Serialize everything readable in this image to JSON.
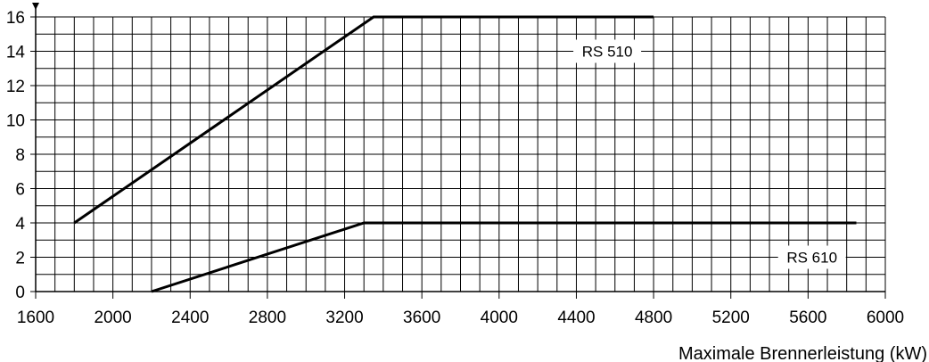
{
  "chart_data": {
    "type": "line",
    "xlabel": "Maximale Brennerleistung (kW)",
    "ylabel": "",
    "xlim": [
      1600,
      6000
    ],
    "ylim": [
      0,
      16
    ],
    "x_ticks": [
      1600,
      2000,
      2400,
      2800,
      3200,
      3600,
      4000,
      4400,
      4800,
      5200,
      5600,
      6000
    ],
    "y_ticks": [
      0,
      2,
      4,
      6,
      8,
      10,
      12,
      14,
      16
    ],
    "x_minor_step": 100,
    "y_minor_step": 1,
    "grid": true,
    "series": [
      {
        "name": "RS 510",
        "x": [
          1800,
          3350,
          4800
        ],
        "y": [
          4,
          16,
          16
        ]
      },
      {
        "name": "RS 610",
        "x": [
          2200,
          3300,
          5850
        ],
        "y": [
          0,
          4,
          4
        ]
      }
    ],
    "annotations": [
      {
        "text": "RS 510",
        "x": 4560,
        "y": 14
      },
      {
        "text": "RS 610",
        "x": 5620,
        "y": 2
      }
    ]
  }
}
